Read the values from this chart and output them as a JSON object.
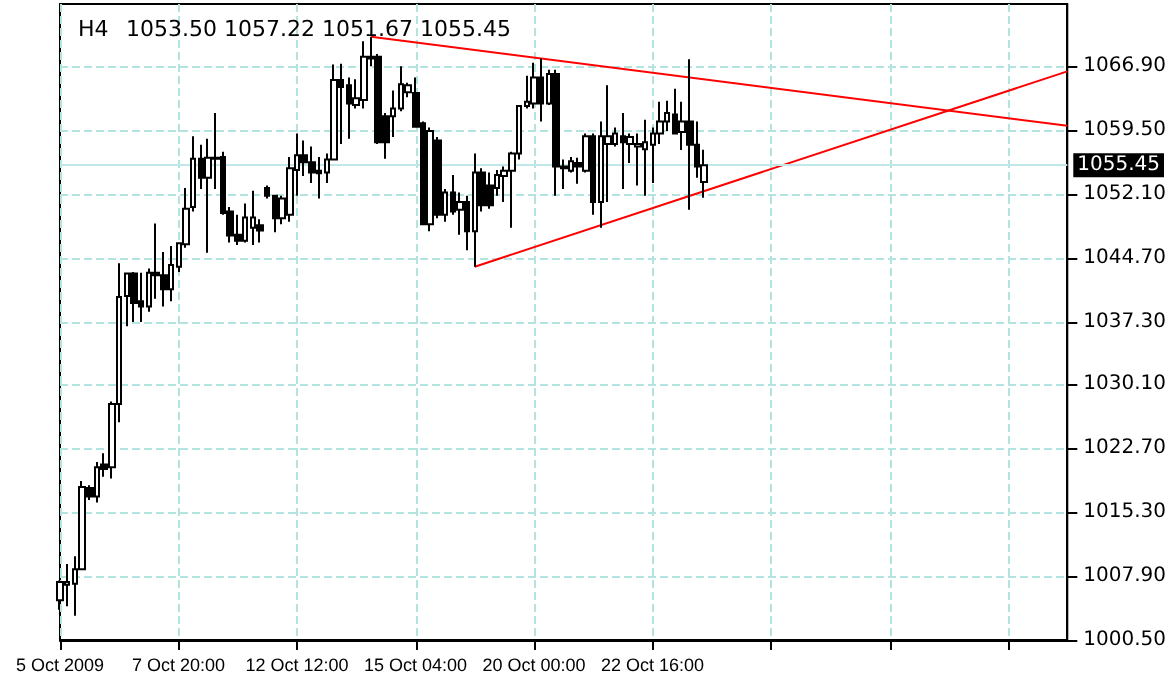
{
  "chart_data": {
    "type": "candlestick",
    "title": "H4",
    "subtitle": "1053.50 1057.22 1051.67 1055.45",
    "color": "#000000",
    "categories": [
      "5 Oct 2009",
      null,
      null,
      null,
      null,
      null,
      null,
      null,
      null,
      null,
      null,
      null,
      null,
      null,
      null,
      null,
      "7 Oct 20:00",
      null,
      null,
      null,
      null,
      null,
      null,
      null,
      null,
      null,
      null,
      null,
      null,
      null,
      null,
      null,
      "12 Oct 12:00",
      null,
      null,
      null,
      null,
      null,
      null,
      null,
      null,
      null,
      null,
      null,
      null,
      null,
      null,
      null,
      "15 Oct 04:00",
      null,
      null,
      null,
      null,
      null,
      null,
      null,
      null,
      null,
      null,
      null,
      null,
      null,
      null,
      null,
      "20 Oct 00:00",
      null,
      null,
      null,
      null,
      null,
      null,
      null,
      null,
      null,
      null,
      null,
      null,
      null,
      null,
      null,
      "22 Oct 16:00",
      null,
      null,
      null,
      null,
      null,
      null,
      null,
      null,
      null,
      null,
      null,
      null,
      null,
      null,
      null,
      null,
      null,
      null,
      null,
      null,
      null,
      null,
      null,
      null,
      null,
      null,
      null,
      null,
      null,
      null,
      null,
      null,
      null,
      null,
      null,
      null,
      null,
      null,
      null,
      null,
      null,
      null,
      null,
      null,
      null,
      null,
      null,
      null,
      null,
      null,
      null,
      null,
      null,
      null,
      null,
      null
    ],
    "ohlc": [
      [
        1005.1,
        1007.4,
        1004.0,
        1007.2
      ],
      [
        1006.9,
        1009.3,
        1004.4,
        1007.2
      ],
      [
        1007.0,
        1010.2,
        1003.3,
        1008.7
      ],
      [
        1008.7,
        1018.9,
        1008.7,
        1018.2
      ],
      [
        1018.1,
        1018.4,
        1016.7,
        1017.1
      ],
      [
        1017.1,
        1021.1,
        1016.4,
        1020.5
      ],
      [
        1020.8,
        1022.1,
        1019.4,
        1020.3
      ],
      [
        1020.5,
        1028.1,
        1019.2,
        1027.8
      ],
      [
        1027.8,
        1044.1,
        1025.7,
        1040.2
      ],
      [
        1040.3,
        1043.0,
        1036.8,
        1042.9
      ],
      [
        1042.9,
        1043.1,
        1037.3,
        1039.5
      ],
      [
        1039.7,
        1043.0,
        1037.3,
        1039.1
      ],
      [
        1039.1,
        1043.5,
        1038.5,
        1043.0
      ],
      [
        1043.0,
        1048.7,
        1040.0,
        1042.7
      ],
      [
        1042.7,
        1045.4,
        1039.1,
        1041.1
      ],
      [
        1041.1,
        1046.1,
        1039.7,
        1043.9
      ],
      [
        1043.7,
        1046.5,
        1043.1,
        1046.4
      ],
      [
        1046.3,
        1052.8,
        1045.9,
        1050.4
      ],
      [
        1050.6,
        1058.8,
        1050.1,
        1056.2
      ],
      [
        1056.2,
        1057.8,
        1052.7,
        1054.0
      ],
      [
        1054.0,
        1058.5,
        1045.3,
        1056.3
      ],
      [
        1056.3,
        1061.5,
        1052.7,
        1056.2
      ],
      [
        1056.4,
        1057.0,
        1049.7,
        1049.9
      ],
      [
        1050.1,
        1050.6,
        1046.5,
        1047.3
      ],
      [
        1047.4,
        1049.7,
        1046.2,
        1046.7
      ],
      [
        1046.7,
        1051.0,
        1046.5,
        1049.4
      ],
      [
        1048.2,
        1052.5,
        1046.2,
        1049.4
      ],
      [
        1048.5,
        1049.2,
        1046.5,
        1047.9
      ],
      [
        1052.8,
        1053.1,
        1051.6,
        1051.9
      ],
      [
        1051.9,
        1051.9,
        1047.7,
        1049.3
      ],
      [
        1049.3,
        1051.9,
        1048.6,
        1051.6
      ],
      [
        1049.7,
        1056.4,
        1048.9,
        1055.1
      ],
      [
        1054.9,
        1059.1,
        1051.9,
        1056.6
      ],
      [
        1056.6,
        1058.3,
        1054.2,
        1055.8
      ],
      [
        1055.8,
        1057.6,
        1053.4,
        1054.6
      ],
      [
        1054.8,
        1056.4,
        1051.6,
        1054.5
      ],
      [
        1054.6,
        1056.8,
        1053.4,
        1056.1
      ],
      [
        1056.1,
        1067.1,
        1056.1,
        1065.3
      ],
      [
        1065.3,
        1067.2,
        1057.9,
        1064.5
      ],
      [
        1064.7,
        1065.6,
        1058.5,
        1062.6
      ],
      [
        1062.4,
        1065.4,
        1062.0,
        1063.2
      ],
      [
        1063.0,
        1069.8,
        1062.0,
        1068.0
      ],
      [
        1068.0,
        1070.3,
        1066.9,
        1067.8
      ],
      [
        1068.0,
        1068.3,
        1057.9,
        1058.1
      ],
      [
        1061.1,
        1061.5,
        1056.2,
        1058.1
      ],
      [
        1061.1,
        1064.1,
        1058.7,
        1062.0
      ],
      [
        1062.0,
        1066.9,
        1061.7,
        1064.8
      ],
      [
        1063.9,
        1065.0,
        1063.3,
        1064.7
      ],
      [
        1063.8,
        1065.6,
        1059.8,
        1059.9
      ],
      [
        1060.3,
        1060.5,
        1048.6,
        1048.6
      ],
      [
        1048.6,
        1059.8,
        1047.8,
        1059.4
      ],
      [
        1058.3,
        1058.7,
        1049.3,
        1049.7
      ],
      [
        1049.7,
        1052.7,
        1048.9,
        1052.3
      ],
      [
        1052.3,
        1054.3,
        1049.7,
        1050.1
      ],
      [
        1050.3,
        1052.3,
        1047.4,
        1051.2
      ],
      [
        1051.2,
        1051.9,
        1045.6,
        1047.8
      ],
      [
        1047.8,
        1056.8,
        1043.7,
        1054.6
      ],
      [
        1054.6,
        1055.1,
        1050.1,
        1050.8
      ],
      [
        1053.1,
        1054.6,
        1050.4,
        1050.8
      ],
      [
        1052.8,
        1054.9,
        1051.9,
        1054.3
      ],
      [
        1054.2,
        1055.3,
        1051.2,
        1054.8
      ],
      [
        1054.8,
        1057.0,
        1048.2,
        1056.8
      ],
      [
        1056.8,
        1062.4,
        1056.1,
        1062.3
      ],
      [
        1062.3,
        1065.8,
        1062.0,
        1062.8
      ],
      [
        1062.6,
        1067.3,
        1062.0,
        1065.6
      ],
      [
        1065.6,
        1067.8,
        1060.5,
        1062.6
      ],
      [
        1062.6,
        1066.5,
        1062.4,
        1066.0
      ],
      [
        1066.0,
        1066.5,
        1051.9,
        1055.3
      ],
      [
        1055.3,
        1056.1,
        1052.7,
        1055.1
      ],
      [
        1054.8,
        1056.4,
        1054.6,
        1055.9
      ],
      [
        1055.7,
        1056.3,
        1053.3,
        1055.3
      ],
      [
        1054.8,
        1059.1,
        1054.6,
        1058.8
      ],
      [
        1058.8,
        1059.1,
        1049.7,
        1051.2
      ],
      [
        1051.2,
        1060.5,
        1048.2,
        1058.8
      ],
      [
        1057.9,
        1064.7,
        1051.2,
        1058.8
      ],
      [
        1057.9,
        1059.8,
        1057.6,
        1059.1
      ],
      [
        1058.8,
        1061.5,
        1052.7,
        1058.1
      ],
      [
        1057.9,
        1059.1,
        1055.7,
        1058.7
      ],
      [
        1057.6,
        1059.1,
        1053.1,
        1057.9
      ],
      [
        1057.3,
        1060.7,
        1051.9,
        1058.1
      ],
      [
        1057.8,
        1059.8,
        1053.4,
        1059.1
      ],
      [
        1059.1,
        1062.8,
        1057.9,
        1060.5
      ],
      [
        1060.5,
        1062.9,
        1059.4,
        1061.5
      ],
      [
        1061.3,
        1064.3,
        1059.1,
        1059.1
      ],
      [
        1059.3,
        1062.8,
        1057.2,
        1060.5
      ],
      [
        1060.5,
        1067.7,
        1050.3,
        1057.8
      ],
      [
        1057.8,
        1060.5,
        1054.0,
        1055.3
      ],
      [
        1053.5,
        1057.22,
        1051.67,
        1055.45
      ],
      null,
      null,
      null,
      null,
      null,
      null,
      null,
      null,
      null,
      null,
      null,
      null,
      null,
      null,
      null,
      null,
      null,
      null,
      null,
      null,
      null,
      null,
      null,
      null,
      null,
      null,
      null,
      null,
      null,
      null,
      null,
      null,
      null,
      null,
      null,
      null,
      null,
      null,
      null,
      null,
      null,
      null,
      null,
      null,
      null,
      null,
      null,
      null,
      null
    ],
    "series": [
      {
        "type": "line",
        "color": "#ff0000",
        "values": [
          null,
          null,
          null,
          null,
          null,
          null,
          null,
          null,
          null,
          null,
          null,
          null,
          null,
          null,
          null,
          null,
          null,
          null,
          null,
          null,
          null,
          null,
          null,
          null,
          null,
          null,
          null,
          null,
          null,
          null,
          null,
          null,
          null,
          null,
          null,
          null,
          null,
          null,
          null,
          null,
          null,
          null,
          1070.3,
          null,
          null,
          null,
          null,
          null,
          null,
          null,
          null,
          null,
          null,
          null,
          null,
          null,
          null,
          null,
          null,
          null,
          null,
          null,
          null,
          null,
          null,
          null,
          null,
          null,
          null,
          null,
          null,
          null,
          null,
          null,
          null,
          null,
          null,
          null,
          null,
          null,
          null,
          null,
          null,
          null,
          null,
          null,
          null,
          null,
          null,
          null,
          null,
          null,
          null,
          null,
          null,
          null,
          null,
          null,
          null,
          null,
          null,
          null,
          null,
          null,
          null,
          null,
          null,
          null,
          null,
          null,
          null,
          null,
          null,
          null,
          null,
          null,
          null,
          null,
          null,
          null,
          null,
          null,
          null,
          null,
          null,
          null,
          null,
          null,
          null,
          null,
          null,
          null,
          null,
          null,
          null,
          null,
          1060.0
        ]
      },
      {
        "type": "line",
        "color": "#ff0000",
        "values": [
          null,
          null,
          null,
          null,
          null,
          null,
          null,
          null,
          null,
          null,
          null,
          null,
          null,
          null,
          null,
          null,
          null,
          null,
          null,
          null,
          null,
          null,
          null,
          null,
          null,
          null,
          null,
          null,
          null,
          null,
          null,
          null,
          null,
          null,
          null,
          null,
          null,
          null,
          null,
          null,
          null,
          null,
          null,
          null,
          null,
          null,
          null,
          null,
          null,
          null,
          null,
          null,
          null,
          null,
          null,
          null,
          1043.7,
          null,
          null,
          null,
          null,
          null,
          null,
          null,
          null,
          null,
          null,
          null,
          null,
          null,
          null,
          null,
          null,
          null,
          null,
          null,
          null,
          null,
          null,
          null,
          null,
          null,
          null,
          null,
          null,
          null,
          null,
          null,
          null,
          null,
          null,
          null,
          null,
          null,
          null,
          null,
          null,
          null,
          null,
          null,
          null,
          null,
          null,
          null,
          null,
          null,
          null,
          null,
          null,
          null,
          null,
          null,
          null,
          null,
          null,
          null,
          null,
          null,
          null,
          null,
          null,
          null,
          null,
          null,
          null,
          null,
          null,
          null,
          null,
          null,
          null,
          null,
          null,
          null,
          null,
          null,
          1066.3
        ]
      }
    ],
    "ref_lines": [
      {
        "axis": "y",
        "value": 1055.45,
        "label": "1055.45",
        "color": "#c0e8e8"
      }
    ],
    "ylim": [
      1000.5,
      1074.1
    ],
    "yticks": [
      {
        "value": 1000.5,
        "label": "1000.50"
      },
      {
        "value": 1007.9,
        "label": "1007.90"
      },
      {
        "value": 1015.3,
        "label": "1015.30"
      },
      {
        "value": 1022.7,
        "label": "1022.70"
      },
      {
        "value": 1030.1,
        "label": "1030.10"
      },
      {
        "value": 1037.3,
        "label": "1037.30"
      },
      {
        "value": 1044.7,
        "label": "1044.70"
      },
      {
        "value": 1052.1,
        "label": "1052.10"
      },
      {
        "value": 1059.5,
        "label": "1059.50"
      },
      {
        "value": 1066.9,
        "label": "1066.90"
      }
    ],
    "grid": true,
    "line_style": "solid",
    "marker": "none"
  }
}
